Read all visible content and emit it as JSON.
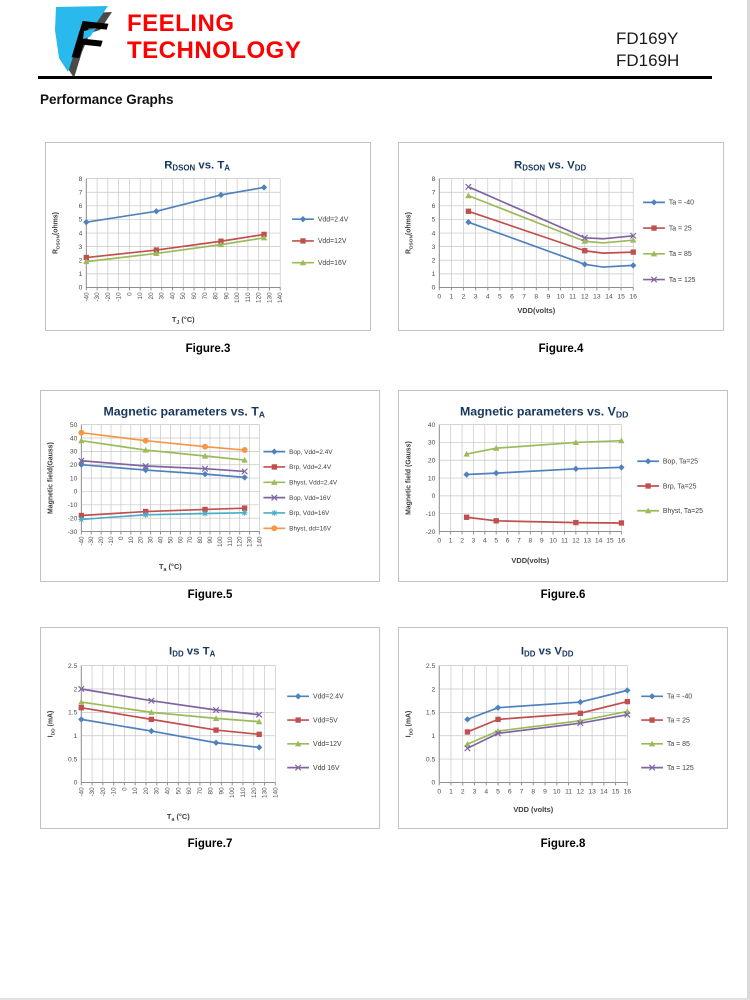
{
  "header": {
    "company_line1": "FEELING",
    "company_line2": "TECHNOLOGY",
    "part_number_1": "FD169Y",
    "part_number_2": "FD169H",
    "logo_icon": "feeling-flag-logo"
  },
  "section_title": "Performance Graphs",
  "colors": {
    "brand_red": "#ff0000",
    "logo_cyan": "#29b9ec",
    "series_blue": "#4F81BD",
    "series_red": "#C0504D",
    "series_green": "#9BBB59",
    "series_purple": "#8064A2",
    "series_cyan": "#4BACC6",
    "series_orange": "#F79646",
    "gridline": "#c6c6c6",
    "title_navy": "#17375D"
  },
  "chart_data": [
    {
      "id": "fig3",
      "type": "line",
      "caption": "Figure.3",
      "title": "Rdson vs. Ta",
      "title_segments": [
        [
          "R",
          0
        ],
        [
          "DSON",
          1
        ],
        [
          " vs. T",
          0
        ],
        [
          "A",
          1
        ]
      ],
      "xlabel_segments": [
        [
          "T",
          0
        ],
        [
          "J",
          1
        ],
        [
          " (°C)",
          0
        ]
      ],
      "ylabel_segments": [
        [
          "R",
          0
        ],
        [
          "DSON",
          1
        ],
        [
          "(ohms)",
          0
        ]
      ],
      "xlim": [
        -40,
        140
      ],
      "ylim": [
        0,
        8
      ],
      "y_step": 1,
      "x_ticks": [
        "-40",
        "-30",
        "-20",
        "-10",
        "0",
        "10",
        "20",
        "30",
        "40",
        "50",
        "60",
        "70",
        "80",
        "90",
        "100",
        "110",
        "120",
        "130",
        "140"
      ],
      "legend_position": "right",
      "grid": true,
      "series": [
        {
          "name": "Vdd=2.4V",
          "color": "#4F81BD",
          "marker": "diamond",
          "x": [
            -40,
            25,
            85,
            125
          ],
          "y": [
            4.8,
            5.6,
            6.8,
            7.35
          ]
        },
        {
          "name": "Vdd=12V",
          "color": "#C0504D",
          "marker": "square",
          "x": [
            -40,
            25,
            85,
            125
          ],
          "y": [
            2.2,
            2.75,
            3.4,
            3.9
          ]
        },
        {
          "name": "Vdd=16V",
          "color": "#9BBB59",
          "marker": "triangle",
          "x": [
            -40,
            25,
            85,
            125
          ],
          "y": [
            1.9,
            2.5,
            3.15,
            3.65
          ]
        }
      ]
    },
    {
      "id": "fig4",
      "type": "line",
      "caption": "Figure.4",
      "title": "Rdson vs. Vdd",
      "title_segments": [
        [
          "R",
          0
        ],
        [
          "DSON",
          1
        ],
        [
          " vs. V",
          0
        ],
        [
          "DD",
          1
        ]
      ],
      "xlabel_segments": [
        [
          "VDD(volts)",
          0
        ]
      ],
      "ylabel_segments": [
        [
          "R",
          0
        ],
        [
          "DSON",
          1
        ],
        [
          "(ohms)",
          0
        ]
      ],
      "xlim": [
        0,
        16
      ],
      "ylim": [
        0,
        8
      ],
      "y_step": 1,
      "x_ticks": [
        "0",
        "1",
        "2",
        "3",
        "4",
        "5",
        "6",
        "7",
        "8",
        "9",
        "10",
        "11",
        "12",
        "13",
        "14",
        "15",
        "16"
      ],
      "legend_position": "right",
      "grid": true,
      "series": [
        {
          "name": "Ta = -40",
          "color": "#4F81BD",
          "marker": "diamond",
          "x": [
            2.4,
            12,
            13.5,
            16
          ],
          "y": [
            4.8,
            1.7,
            1.5,
            1.62
          ],
          "marker_at": [
            0,
            1,
            3
          ]
        },
        {
          "name": "Ta = 25",
          "color": "#C0504D",
          "marker": "square",
          "x": [
            2.4,
            12,
            13.5,
            16
          ],
          "y": [
            5.6,
            2.7,
            2.52,
            2.6
          ],
          "marker_at": [
            0,
            1,
            3
          ]
        },
        {
          "name": "Ta = 85",
          "color": "#9BBB59",
          "marker": "triangle",
          "x": [
            2.4,
            12,
            13.5,
            16
          ],
          "y": [
            6.75,
            3.4,
            3.27,
            3.48
          ],
          "marker_at": [
            0,
            1,
            3
          ]
        },
        {
          "name": "Ta = 125",
          "color": "#8064A2",
          "marker": "x",
          "x": [
            2.4,
            12,
            13.5,
            16
          ],
          "y": [
            7.4,
            3.65,
            3.58,
            3.8
          ],
          "marker_at": [
            0,
            1,
            3
          ]
        }
      ]
    },
    {
      "id": "fig5",
      "type": "line",
      "caption": "Figure.5",
      "title": "Magnetic parameters vs. Ta",
      "title_segments": [
        [
          "Magnetic parameters vs. T",
          0
        ],
        [
          "A",
          1
        ]
      ],
      "xlabel_segments": [
        [
          "T",
          0
        ],
        [
          "a",
          1
        ],
        [
          " (°C)",
          0
        ]
      ],
      "ylabel_segments": [
        [
          "Magnetic field(Gauss)",
          0
        ]
      ],
      "xlim": [
        -40,
        140
      ],
      "ylim": [
        -30,
        50
      ],
      "y_step": 10,
      "x_ticks": [
        "-40",
        "-30",
        "-20",
        "-10",
        "0",
        "10",
        "20",
        "30",
        "40",
        "50",
        "60",
        "70",
        "80",
        "90",
        "100",
        "110",
        "120",
        "130",
        "140"
      ],
      "legend_position": "right",
      "grid": true,
      "series": [
        {
          "name": "Bop, Vdd=2.4V",
          "color": "#4F81BD",
          "marker": "diamond",
          "x": [
            -40,
            25,
            85,
            125
          ],
          "y": [
            20,
            16,
            13,
            10.5
          ]
        },
        {
          "name": "Brp, Vdd=2.4V",
          "color": "#C0504D",
          "marker": "square",
          "x": [
            -40,
            25,
            85,
            125
          ],
          "y": [
            -18,
            -15,
            -13.5,
            -12.5
          ]
        },
        {
          "name": "Bhyst, Vdd=2.4V",
          "color": "#9BBB59",
          "marker": "triangle",
          "x": [
            -40,
            25,
            85,
            125
          ],
          "y": [
            38,
            31,
            26.5,
            23.5
          ]
        },
        {
          "name": "Bop, Vdd=16V",
          "color": "#8064A2",
          "marker": "x",
          "x": [
            -40,
            25,
            85,
            125
          ],
          "y": [
            23,
            19,
            17,
            15
          ]
        },
        {
          "name": "Brp, Vdd=16V",
          "color": "#4BACC6",
          "marker": "star",
          "x": [
            -40,
            25,
            85,
            125
          ],
          "y": [
            -21,
            -17.5,
            -16.5,
            -16
          ]
        },
        {
          "name": "Bhyst, dd=16V",
          "color": "#F79646",
          "marker": "circle",
          "x": [
            -40,
            25,
            85,
            125
          ],
          "y": [
            44,
            38,
            33.5,
            31
          ]
        }
      ]
    },
    {
      "id": "fig6",
      "type": "line",
      "caption": "Figure.6",
      "title": "Magnetic parameters vs. Vdd",
      "title_segments": [
        [
          "Magnetic parameters vs. V",
          0
        ],
        [
          "DD",
          1
        ]
      ],
      "xlabel_segments": [
        [
          "VDD(volts)",
          0
        ]
      ],
      "ylabel_segments": [
        [
          "Magnetic field (Gauss)",
          0
        ]
      ],
      "xlim": [
        0,
        16
      ],
      "ylim": [
        -20,
        40
      ],
      "y_step": 10,
      "x_ticks": [
        "0",
        "1",
        "2",
        "3",
        "4",
        "5",
        "6",
        "7",
        "8",
        "9",
        "10",
        "11",
        "12",
        "13",
        "14",
        "15",
        "16"
      ],
      "legend_position": "right",
      "grid": true,
      "series": [
        {
          "name": "Bop, Ta=25",
          "color": "#4F81BD",
          "marker": "diamond",
          "x": [
            2.4,
            5,
            12,
            16
          ],
          "y": [
            12,
            12.8,
            15.2,
            16
          ]
        },
        {
          "name": "Brp, Ta=25",
          "color": "#C0504D",
          "marker": "square",
          "x": [
            2.4,
            5,
            12,
            16
          ],
          "y": [
            -12,
            -14,
            -15,
            -15.2
          ]
        },
        {
          "name": "Bhyst, Ta=25",
          "color": "#9BBB59",
          "marker": "triangle",
          "x": [
            2.4,
            5,
            12,
            16
          ],
          "y": [
            23.5,
            26.8,
            30,
            31
          ]
        }
      ]
    },
    {
      "id": "fig7",
      "type": "line",
      "caption": "Figure.7",
      "title": "Idd vs Ta",
      "title_segments": [
        [
          "I",
          0
        ],
        [
          "DD",
          1
        ],
        [
          " vs T",
          0
        ],
        [
          "A",
          1
        ]
      ],
      "xlabel_segments": [
        [
          "T",
          0
        ],
        [
          "a",
          1
        ],
        [
          " (°C)",
          0
        ]
      ],
      "ylabel_segments": [
        [
          "I",
          0
        ],
        [
          "DD",
          1
        ],
        [
          " (mA)",
          0
        ]
      ],
      "xlim": [
        -40,
        140
      ],
      "ylim": [
        0,
        2.5
      ],
      "y_step": 0.5,
      "x_ticks": [
        "-40",
        "-30",
        "-20",
        "-10",
        "0",
        "10",
        "20",
        "30",
        "40",
        "50",
        "60",
        "70",
        "80",
        "90",
        "100",
        "110",
        "120",
        "130",
        "140"
      ],
      "legend_position": "right",
      "grid": true,
      "series": [
        {
          "name": "Vdd=2.4V",
          "color": "#4F81BD",
          "marker": "diamond",
          "x": [
            -40,
            25,
            85,
            125
          ],
          "y": [
            1.35,
            1.1,
            0.85,
            0.75
          ]
        },
        {
          "name": "Vdd=5V",
          "color": "#C0504D",
          "marker": "square",
          "x": [
            -40,
            25,
            85,
            125
          ],
          "y": [
            1.6,
            1.35,
            1.12,
            1.03
          ]
        },
        {
          "name": "Vdd=12V",
          "color": "#9BBB59",
          "marker": "triangle",
          "x": [
            -40,
            25,
            85,
            125
          ],
          "y": [
            1.72,
            1.5,
            1.37,
            1.3
          ]
        },
        {
          "name": "Vdd 16V",
          "color": "#8064A2",
          "marker": "x",
          "x": [
            -40,
            25,
            85,
            125
          ],
          "y": [
            2.0,
            1.75,
            1.55,
            1.45
          ]
        }
      ]
    },
    {
      "id": "fig8",
      "type": "line",
      "caption": "Figure.8",
      "title": "Idd vs Vdd",
      "title_segments": [
        [
          "I",
          0
        ],
        [
          "DD",
          1
        ],
        [
          " vs V",
          0
        ],
        [
          "DD",
          1
        ]
      ],
      "xlabel_segments": [
        [
          "VDD (volts)",
          0
        ]
      ],
      "ylabel_segments": [
        [
          "I",
          0
        ],
        [
          "DD",
          1
        ],
        [
          " (mA)",
          0
        ]
      ],
      "xlim": [
        0,
        16
      ],
      "ylim": [
        0,
        2.5
      ],
      "y_step": 0.5,
      "x_ticks": [
        "0",
        "1",
        "2",
        "3",
        "4",
        "5",
        "6",
        "7",
        "8",
        "9",
        "10",
        "11",
        "12",
        "13",
        "14",
        "15",
        "16"
      ],
      "legend_position": "right",
      "grid": true,
      "series": [
        {
          "name": "Ta = -40",
          "color": "#4F81BD",
          "marker": "diamond",
          "x": [
            2.4,
            5,
            12,
            16
          ],
          "y": [
            1.35,
            1.6,
            1.72,
            1.97
          ]
        },
        {
          "name": "Ta = 25",
          "color": "#C0504D",
          "marker": "square",
          "x": [
            2.4,
            5,
            12,
            16
          ],
          "y": [
            1.08,
            1.35,
            1.48,
            1.73
          ]
        },
        {
          "name": "Ta = 85",
          "color": "#9BBB59",
          "marker": "triangle",
          "x": [
            2.4,
            5,
            12,
            16
          ],
          "y": [
            0.82,
            1.1,
            1.32,
            1.52
          ]
        },
        {
          "name": "Ta = 125",
          "color": "#8064A2",
          "marker": "x",
          "x": [
            2.4,
            5,
            12,
            16
          ],
          "y": [
            0.73,
            1.05,
            1.27,
            1.45
          ]
        }
      ]
    }
  ]
}
